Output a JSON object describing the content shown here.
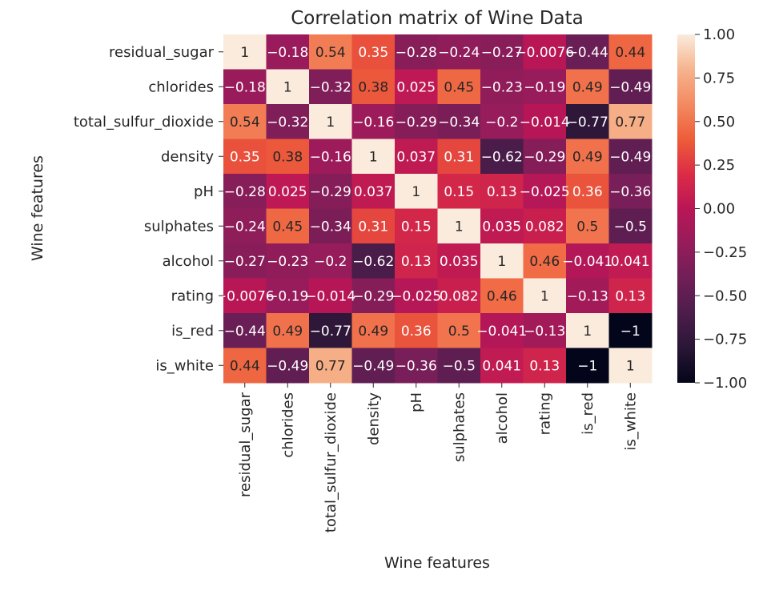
{
  "chart_data": {
    "type": "heatmap",
    "title": "Correlation matrix of Wine Data",
    "xlabel": "Wine features",
    "ylabel": "Wine features",
    "rows": [
      "residual_sugar",
      "chlorides",
      "total_sulfur_dioxide",
      "density",
      "pH",
      "sulphates",
      "alcohol",
      "rating",
      "is_red",
      "is_white"
    ],
    "columns": [
      "residual_sugar",
      "chlorides",
      "total_sulfur_dioxide",
      "density",
      "pH",
      "sulphates",
      "alcohol",
      "rating",
      "is_red",
      "is_white"
    ],
    "values": [
      [
        1,
        -0.18,
        0.54,
        0.35,
        -0.28,
        -0.24,
        -0.27,
        -0.0076,
        -0.44,
        0.44
      ],
      [
        -0.18,
        1,
        -0.32,
        0.38,
        0.025,
        0.45,
        -0.23,
        -0.19,
        0.49,
        -0.49
      ],
      [
        0.54,
        -0.32,
        1,
        -0.16,
        -0.29,
        -0.34,
        -0.2,
        -0.014,
        -0.77,
        0.77
      ],
      [
        0.35,
        0.38,
        -0.16,
        1,
        0.037,
        0.31,
        -0.62,
        -0.29,
        0.49,
        -0.49
      ],
      [
        -0.28,
        0.025,
        -0.29,
        0.037,
        1,
        0.15,
        0.13,
        -0.025,
        0.36,
        -0.36
      ],
      [
        -0.24,
        0.45,
        -0.34,
        0.31,
        0.15,
        1,
        0.035,
        0.082,
        0.5,
        -0.5
      ],
      [
        -0.27,
        -0.23,
        -0.2,
        -0.62,
        0.13,
        0.035,
        1,
        0.46,
        -0.041,
        0.041
      ],
      [
        -0.0076,
        -0.19,
        -0.014,
        -0.29,
        -0.025,
        0.082,
        0.46,
        1,
        -0.13,
        0.13
      ],
      [
        -0.44,
        0.49,
        -0.77,
        0.49,
        0.36,
        0.5,
        -0.041,
        -0.13,
        1,
        -1
      ],
      [
        0.44,
        -0.49,
        0.77,
        -0.49,
        -0.36,
        -0.5,
        0.041,
        0.13,
        -1,
        1
      ]
    ],
    "value_range": [
      -1,
      1
    ],
    "colormap": "rocket",
    "colorbar_ticks": [
      "1.00",
      "0.75",
      "0.50",
      "0.25",
      "0.00",
      "−0.25",
      "−0.50",
      "−0.75",
      "−1.00"
    ],
    "colorbar_tick_values": [
      1,
      0.75,
      0.5,
      0.25,
      0,
      -0.25,
      -0.5,
      -0.75,
      -1
    ],
    "colormap_stops": [
      "#03051A",
      "#2A1636",
      "#4C1D4B",
      "#701F57",
      "#961C5B",
      "#BA1656",
      "#DB2C46",
      "#EE5D3A",
      "#F38A61",
      "#F6B48E",
      "#FAEBDD"
    ],
    "annotate": true
  }
}
